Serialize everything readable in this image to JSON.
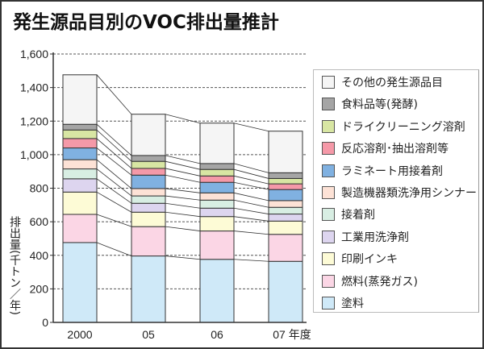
{
  "chart_data": {
    "type": "bar",
    "stacked": true,
    "title": "発生源品目別のVOC排出量推計",
    "ylabel": "排出量(千トン／年)",
    "xlabel": "",
    "categories": [
      "2000",
      "05",
      "06",
      "07 年度"
    ],
    "ylim": [
      0,
      1600
    ],
    "yticks": [
      "0",
      "200",
      "400",
      "600",
      "800",
      "1,000",
      "1,200",
      "1,400",
      "1,600"
    ],
    "grid": true,
    "legend_position": "right",
    "series": [
      {
        "name": "塗料",
        "color": "#cfe9f8",
        "values": [
          476,
          396,
          376,
          364
        ]
      },
      {
        "name": "燃料(蒸発ガス)",
        "color": "#fbd6e5",
        "values": [
          168,
          175,
          169,
          161
        ]
      },
      {
        "name": "印刷インキ",
        "color": "#fdfbd6",
        "values": [
          133,
          86,
          86,
          79
        ]
      },
      {
        "name": "工業用洗浄剤",
        "color": "#ddd5ef",
        "values": [
          79,
          53,
          50,
          42
        ]
      },
      {
        "name": "接着剤",
        "color": "#d8eee3",
        "values": [
          59,
          44,
          48,
          40
        ]
      },
      {
        "name": "製造機器類洗浄用シンナー",
        "color": "#fde2d6",
        "values": [
          55,
          44,
          43,
          40
        ]
      },
      {
        "name": "ラミネート用接着剤",
        "color": "#80b1e1",
        "values": [
          70,
          80,
          63,
          66
        ]
      },
      {
        "name": "反応溶剤･抽出溶剤等",
        "color": "#f599a8",
        "values": [
          56,
          40,
          38,
          34
        ]
      },
      {
        "name": "ドライクリーニング溶剤",
        "color": "#d8e6a3",
        "values": [
          51,
          42,
          39,
          32
        ]
      },
      {
        "name": "食料品等(発酵)",
        "color": "#a5a5a5",
        "values": [
          34,
          35,
          35,
          34
        ]
      },
      {
        "name": "その他の発生源品目",
        "color": "#f5f5f5",
        "values": [
          295,
          246,
          241,
          248
        ]
      }
    ]
  }
}
